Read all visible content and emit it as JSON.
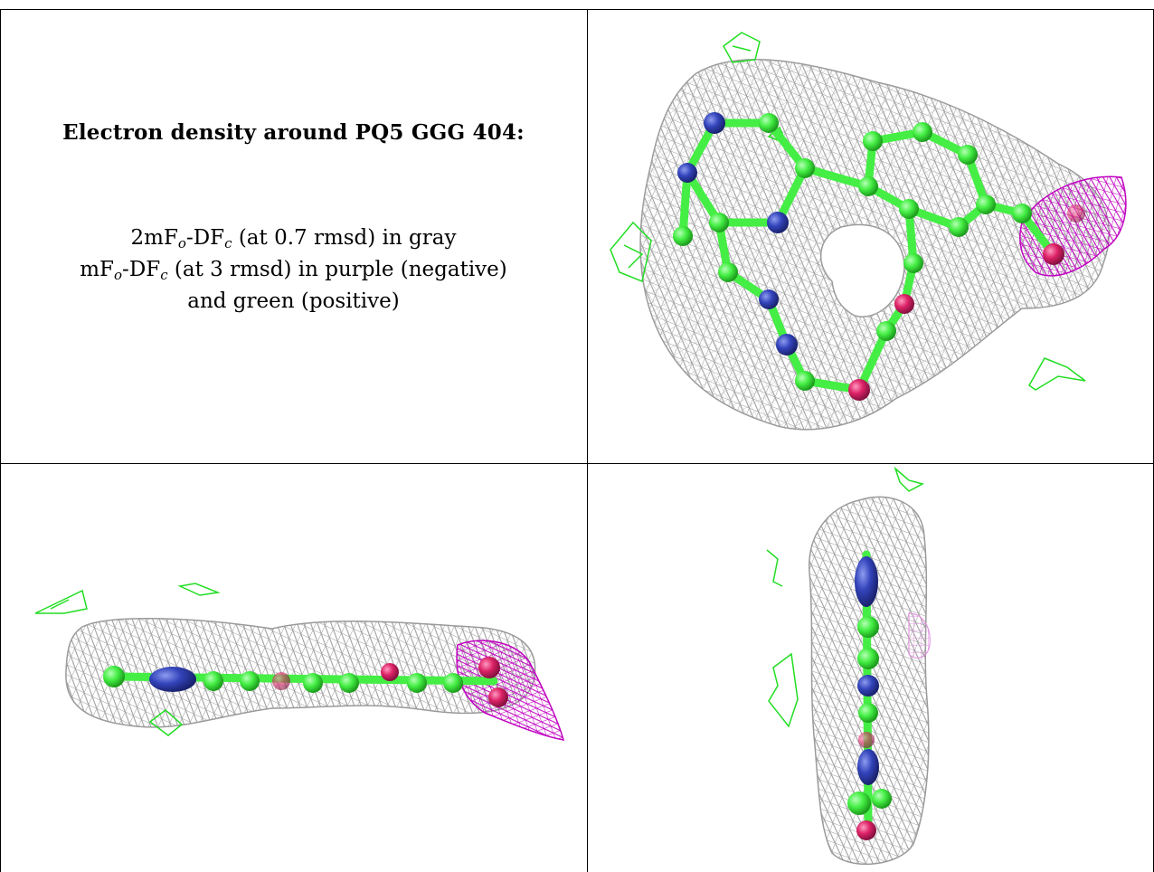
{
  "caption": {
    "title": "Electron density around PQ5 GGG 404:",
    "line1": {
      "prefix": "2mF",
      "sub1": "o",
      "mid": "-DF",
      "sub2": "c",
      "suffix": " (at 0.7 rmsd) in gray"
    },
    "line2": {
      "prefix": "mF",
      "sub1": "o",
      "mid": "-DF",
      "sub2": "c",
      "suffix": " (at 3 rmsd) in purple (negative)"
    },
    "line3": "and green (positive)"
  },
  "colors": {
    "mesh_gray": "#9a9a9a",
    "negative_purple": "#c000c0",
    "positive_green": "#22dd22",
    "carbon_green": "#44ee44",
    "nitrogen_blue": "#3344bb",
    "oxygen_red": "#dd2266",
    "frame": "#000000"
  },
  "panels": [
    "top-right-view",
    "bottom-left-view",
    "bottom-right-view"
  ]
}
